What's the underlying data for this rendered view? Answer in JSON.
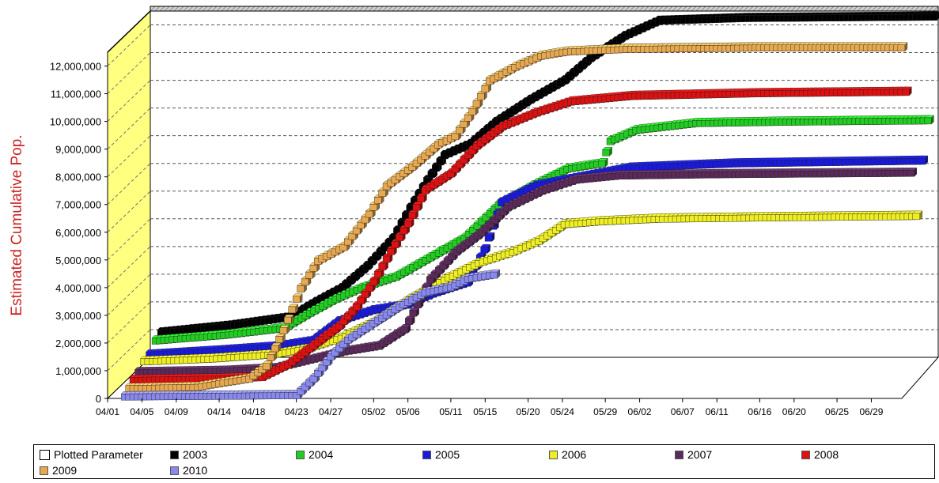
{
  "chart_data": {
    "type": "scatter",
    "title": "",
    "xlabel": "",
    "ylabel": "Estimated Cumulative Pop.",
    "ylim": [
      0,
      12500000
    ],
    "y_ticks": [
      "0",
      "1,000,000",
      "2,000,000",
      "3,000,000",
      "4,000,000",
      "5,000,000",
      "6,000,000",
      "7,000,000",
      "8,000,000",
      "9,000,000",
      "10,000,000",
      "11,000,000",
      "12,000,000"
    ],
    "x_ticks": [
      "04/01",
      "04/05",
      "04/09",
      "04/14",
      "04/18",
      "04/23",
      "04/27",
      "05/02",
      "05/06",
      "05/11",
      "05/15",
      "05/20",
      "05/24",
      "05/29",
      "06/02",
      "06/07",
      "06/11",
      "06/16",
      "06/20",
      "06/25",
      "06/29"
    ],
    "x_tick_days": [
      0,
      4,
      8,
      13,
      17,
      22,
      26,
      31,
      35,
      40,
      44,
      49,
      53,
      58,
      62,
      67,
      71,
      76,
      80,
      85,
      89
    ],
    "x_range_days": [
      0,
      92
    ],
    "grid": "horizontal-dashed",
    "legend_position": "bottom",
    "legend": {
      "parameter_label": "Plotted Parameter",
      "entries": [
        "2003",
        "2004",
        "2005",
        "2006",
        "2007",
        "2008",
        "2009",
        "2010"
      ]
    },
    "series": [
      {
        "name": "2003",
        "color": "#000000",
        "depth": 0.85,
        "start_day": 2,
        "end_day": 92,
        "points": [
          [
            2,
            1100000
          ],
          [
            10,
            1350000
          ],
          [
            17,
            1650000
          ],
          [
            20,
            2200000
          ],
          [
            23,
            2700000
          ],
          [
            26,
            3500000
          ],
          [
            29,
            4500000
          ],
          [
            31,
            5600000
          ],
          [
            33,
            6600000
          ],
          [
            35,
            7500000
          ],
          [
            38,
            7900000
          ],
          [
            41,
            8700000
          ],
          [
            45,
            9500000
          ],
          [
            49,
            10200000
          ],
          [
            52,
            11000000
          ],
          [
            56,
            11800000
          ],
          [
            60,
            12350000
          ],
          [
            70,
            12450000
          ],
          [
            92,
            12500000
          ]
        ]
      },
      {
        "name": "2004",
        "color": "#22cc22",
        "depth": 0.72,
        "start_day": 2,
        "end_day": 92,
        "points": [
          [
            2,
            1000000
          ],
          [
            10,
            1200000
          ],
          [
            17,
            1450000
          ],
          [
            20,
            2000000
          ],
          [
            23,
            2500000
          ],
          [
            26,
            2900000
          ],
          [
            30,
            3300000
          ],
          [
            34,
            4000000
          ],
          [
            38,
            4700000
          ],
          [
            42,
            5900000
          ],
          [
            46,
            6600000
          ],
          [
            50,
            7200000
          ],
          [
            54,
            7400000
          ],
          [
            55,
            8200000
          ],
          [
            58,
            8600000
          ],
          [
            65,
            8850000
          ],
          [
            75,
            8900000
          ],
          [
            92,
            8950000
          ]
        ]
      },
      {
        "name": "2005",
        "color": "#1a1adc",
        "depth": 0.58,
        "start_day": 2,
        "end_day": 92,
        "points": [
          [
            2,
            700000
          ],
          [
            10,
            850000
          ],
          [
            17,
            1000000
          ],
          [
            21,
            1200000
          ],
          [
            24,
            1900000
          ],
          [
            28,
            2300000
          ],
          [
            32,
            2500000
          ],
          [
            35,
            2900000
          ],
          [
            39,
            3300000
          ],
          [
            41,
            4500000
          ],
          [
            43,
            6200000
          ],
          [
            47,
            6800000
          ],
          [
            52,
            7100000
          ],
          [
            58,
            7450000
          ],
          [
            70,
            7600000
          ],
          [
            92,
            7700000
          ]
        ]
      },
      {
        "name": "2006",
        "color": "#eeee22",
        "depth": 0.45,
        "start_day": 2,
        "end_day": 92,
        "points": [
          [
            2,
            650000
          ],
          [
            10,
            750000
          ],
          [
            17,
            900000
          ],
          [
            21,
            1100000
          ],
          [
            25,
            1500000
          ],
          [
            29,
            2100000
          ],
          [
            33,
            2900000
          ],
          [
            37,
            3600000
          ],
          [
            41,
            4200000
          ],
          [
            45,
            4600000
          ],
          [
            48,
            5000000
          ],
          [
            51,
            5600000
          ],
          [
            55,
            5700000
          ],
          [
            62,
            5800000
          ],
          [
            75,
            5850000
          ],
          [
            92,
            5900000
          ]
        ]
      },
      {
        "name": "2007",
        "color": "#5a2a5a",
        "depth": 0.32,
        "start_day": 2,
        "end_day": 92,
        "points": [
          [
            2,
            450000
          ],
          [
            12,
            500000
          ],
          [
            18,
            600000
          ],
          [
            22,
            900000
          ],
          [
            26,
            1200000
          ],
          [
            30,
            1400000
          ],
          [
            33,
            2000000
          ],
          [
            36,
            3800000
          ],
          [
            39,
            4800000
          ],
          [
            42,
            5500000
          ],
          [
            45,
            6400000
          ],
          [
            49,
            7000000
          ],
          [
            53,
            7400000
          ],
          [
            58,
            7550000
          ],
          [
            70,
            7600000
          ],
          [
            92,
            7650000
          ]
        ]
      },
      {
        "name": "2008",
        "color": "#dd1111",
        "depth": 0.2,
        "start_day": 2,
        "end_day": 92,
        "points": [
          [
            2,
            350000
          ],
          [
            12,
            400000
          ],
          [
            17,
            450000
          ],
          [
            20,
            900000
          ],
          [
            23,
            1600000
          ],
          [
            26,
            2300000
          ],
          [
            28,
            3000000
          ],
          [
            30,
            3900000
          ],
          [
            32,
            5000000
          ],
          [
            34,
            6000000
          ],
          [
            36,
            7200000
          ],
          [
            39,
            7800000
          ],
          [
            42,
            8800000
          ],
          [
            45,
            9500000
          ],
          [
            49,
            10000000
          ],
          [
            53,
            10400000
          ],
          [
            60,
            10600000
          ],
          [
            75,
            10700000
          ],
          [
            92,
            10750000
          ]
        ]
      },
      {
        "name": "2009",
        "color": "#e8a850",
        "depth": 0.1,
        "start_day": 2,
        "end_day": 92,
        "points": [
          [
            2,
            200000
          ],
          [
            10,
            250000
          ],
          [
            16,
            550000
          ],
          [
            18,
            1000000
          ],
          [
            20,
            2300000
          ],
          [
            22,
            3800000
          ],
          [
            24,
            4800000
          ],
          [
            27,
            5300000
          ],
          [
            30,
            6500000
          ],
          [
            32,
            7500000
          ],
          [
            35,
            8200000
          ],
          [
            38,
            9000000
          ],
          [
            40,
            9300000
          ],
          [
            42,
            10200000
          ],
          [
            44,
            11300000
          ],
          [
            47,
            11800000
          ],
          [
            50,
            12200000
          ],
          [
            53,
            12350000
          ],
          [
            60,
            12450000
          ],
          [
            75,
            12500000
          ],
          [
            92,
            12500000
          ]
        ]
      },
      {
        "name": "2010",
        "color": "#8888ee",
        "depth": 0.0,
        "start_day": 2,
        "end_day": 45,
        "points": [
          [
            2,
            50000
          ],
          [
            15,
            80000
          ],
          [
            22,
            100000
          ],
          [
            24,
            700000
          ],
          [
            26,
            1500000
          ],
          [
            28,
            2100000
          ],
          [
            31,
            2700000
          ],
          [
            34,
            3300000
          ],
          [
            37,
            3800000
          ],
          [
            40,
            4000000
          ],
          [
            42,
            4300000
          ],
          [
            45,
            4450000
          ]
        ]
      }
    ]
  }
}
